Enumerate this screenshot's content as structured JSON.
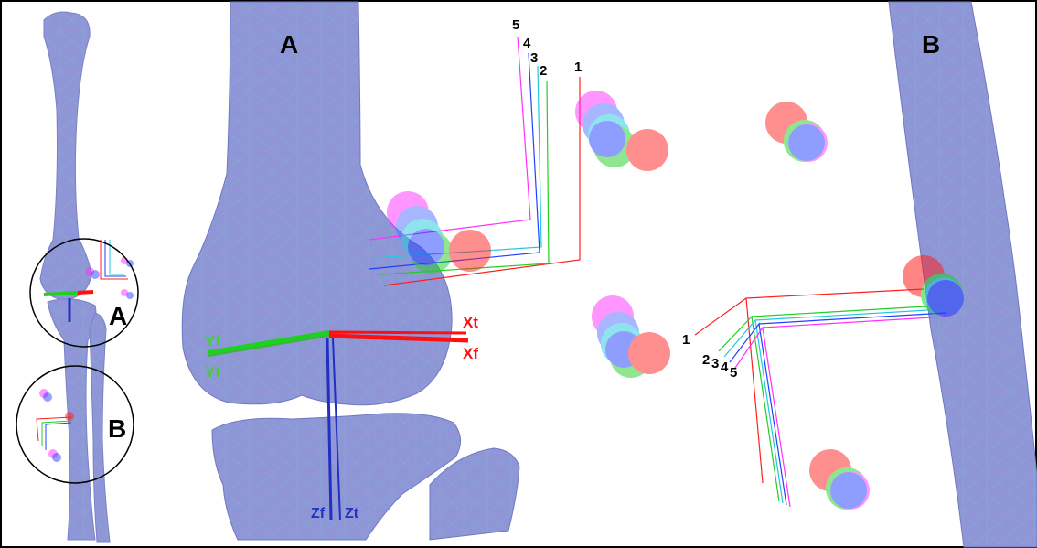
{
  "panels": {
    "overview_callouts": [
      "A",
      "B"
    ],
    "panel_a_label": "A",
    "panel_b_label": "B"
  },
  "axis_labels": {
    "x_tibia": "Xt",
    "x_femur": "Xf",
    "y_femur": "Yf",
    "y_tibia": "Yt",
    "z_femur": "Zf",
    "z_tibia": "Zt"
  },
  "frame_series": [
    {
      "label": "1",
      "color": "#ff2020"
    },
    {
      "label": "2",
      "color": "#20d020"
    },
    {
      "label": "3",
      "color": "#20c8e0"
    },
    {
      "label": "4",
      "color": "#2040ff"
    },
    {
      "label": "5",
      "color": "#ff30ff"
    }
  ],
  "colors": {
    "bone_fill": "#8a8ed6",
    "bone_tint": "#9fb0e0",
    "x_axis": "#ff1010",
    "y_axis": "#20d020",
    "z_axis": "#2030c0",
    "border": "#000000"
  }
}
